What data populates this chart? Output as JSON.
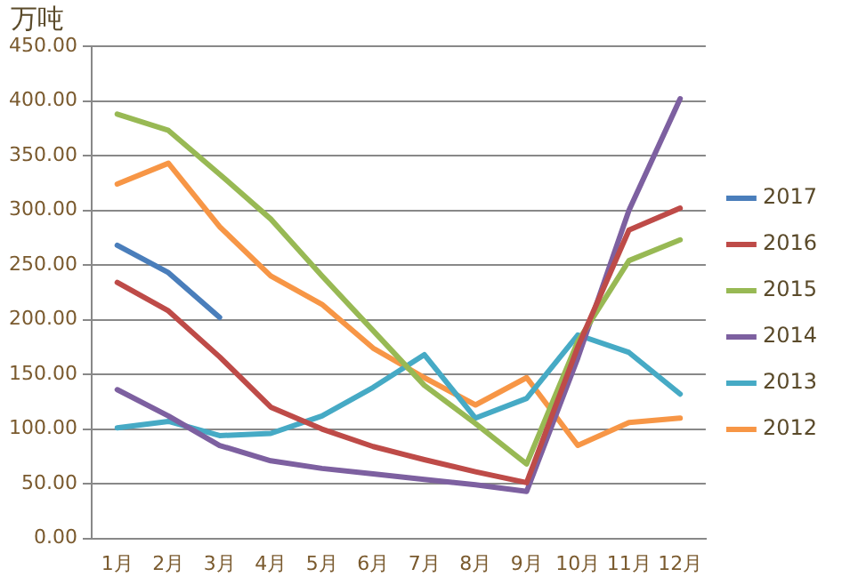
{
  "chart_data": {
    "type": "line",
    "ylabel": "万吨",
    "categories": [
      "1月",
      "2月",
      "3月",
      "4月",
      "5月",
      "6月",
      "7月",
      "8月",
      "9月",
      "10月",
      "11月",
      "12月"
    ],
    "series": [
      {
        "name": "2017",
        "color": "#4a7ebb",
        "values": [
          268,
          243,
          202,
          null,
          null,
          null,
          null,
          null,
          null,
          null,
          null,
          null
        ]
      },
      {
        "name": "2016",
        "color": "#be4b48",
        "values": [
          234,
          208,
          166,
          120,
          100,
          84,
          72,
          61,
          51,
          175,
          282,
          302
        ]
      },
      {
        "name": "2015",
        "color": "#98b954",
        "values": [
          388,
          373,
          333,
          292,
          240,
          190,
          140,
          105,
          68,
          180,
          254,
          273
        ]
      },
      {
        "name": "2014",
        "color": "#7d60a0",
        "values": [
          136,
          112,
          85,
          71,
          64,
          59,
          54,
          49,
          43,
          165,
          300,
          402
        ]
      },
      {
        "name": "2013",
        "color": "#46aac5",
        "values": [
          101,
          107,
          94,
          96,
          112,
          138,
          168,
          110,
          128,
          186,
          170,
          132
        ]
      },
      {
        "name": "2012",
        "color": "#f79646",
        "values": [
          324,
          343,
          285,
          240,
          214,
          174,
          147,
          122,
          147,
          85,
          106,
          110
        ]
      }
    ],
    "ylim": [
      0,
      450
    ],
    "yticks": [
      {
        "value": 0,
        "label": "0.00"
      },
      {
        "value": 50,
        "label": "50.00"
      },
      {
        "value": 100,
        "label": "100.00"
      },
      {
        "value": 150,
        "label": "150.00"
      },
      {
        "value": 200,
        "label": "200.00"
      },
      {
        "value": 250,
        "label": "250.00"
      },
      {
        "value": 300,
        "label": "300.00"
      },
      {
        "value": 350,
        "label": "350.00"
      },
      {
        "value": 400,
        "label": "400.00"
      },
      {
        "value": 450,
        "label": "450.00"
      }
    ],
    "grid": "y",
    "legend": "right",
    "marker": "none",
    "line_style": "solid"
  }
}
